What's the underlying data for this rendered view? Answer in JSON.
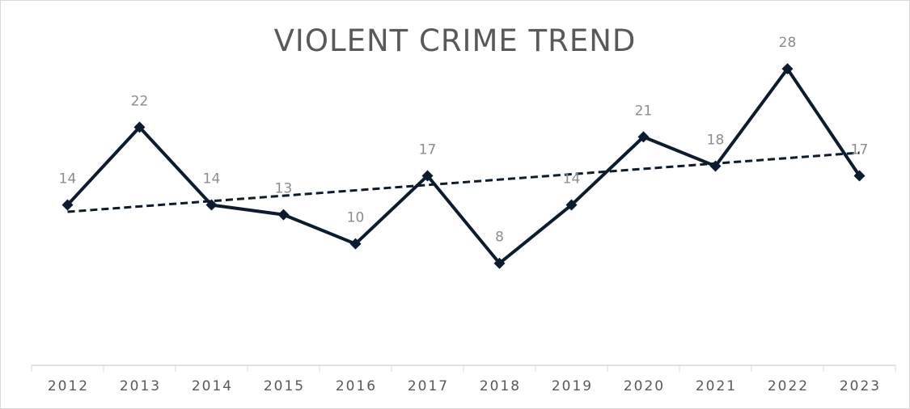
{
  "chart_data": {
    "type": "line",
    "title": "VIOLENT CRIME TREND",
    "xlabel": "",
    "ylabel": "",
    "categories": [
      "2012",
      "2013",
      "2014",
      "2015",
      "2016",
      "2017",
      "2018",
      "2019",
      "2020",
      "2021",
      "2022",
      "2023"
    ],
    "series": [
      {
        "values": [
          14,
          22,
          14,
          13,
          10,
          17,
          8,
          14,
          21,
          18,
          28,
          17
        ],
        "color": "#0d1b2e",
        "marker": "diamond",
        "data_labels": true
      }
    ],
    "trendline": {
      "type": "linear",
      "style": "dashed",
      "color": "#0d1b2e"
    },
    "ylim": [
      -2.5,
      35
    ],
    "grid": false,
    "legend": "none",
    "axis_color": "#d9d9d9",
    "label_color": "#8c8c8c"
  }
}
